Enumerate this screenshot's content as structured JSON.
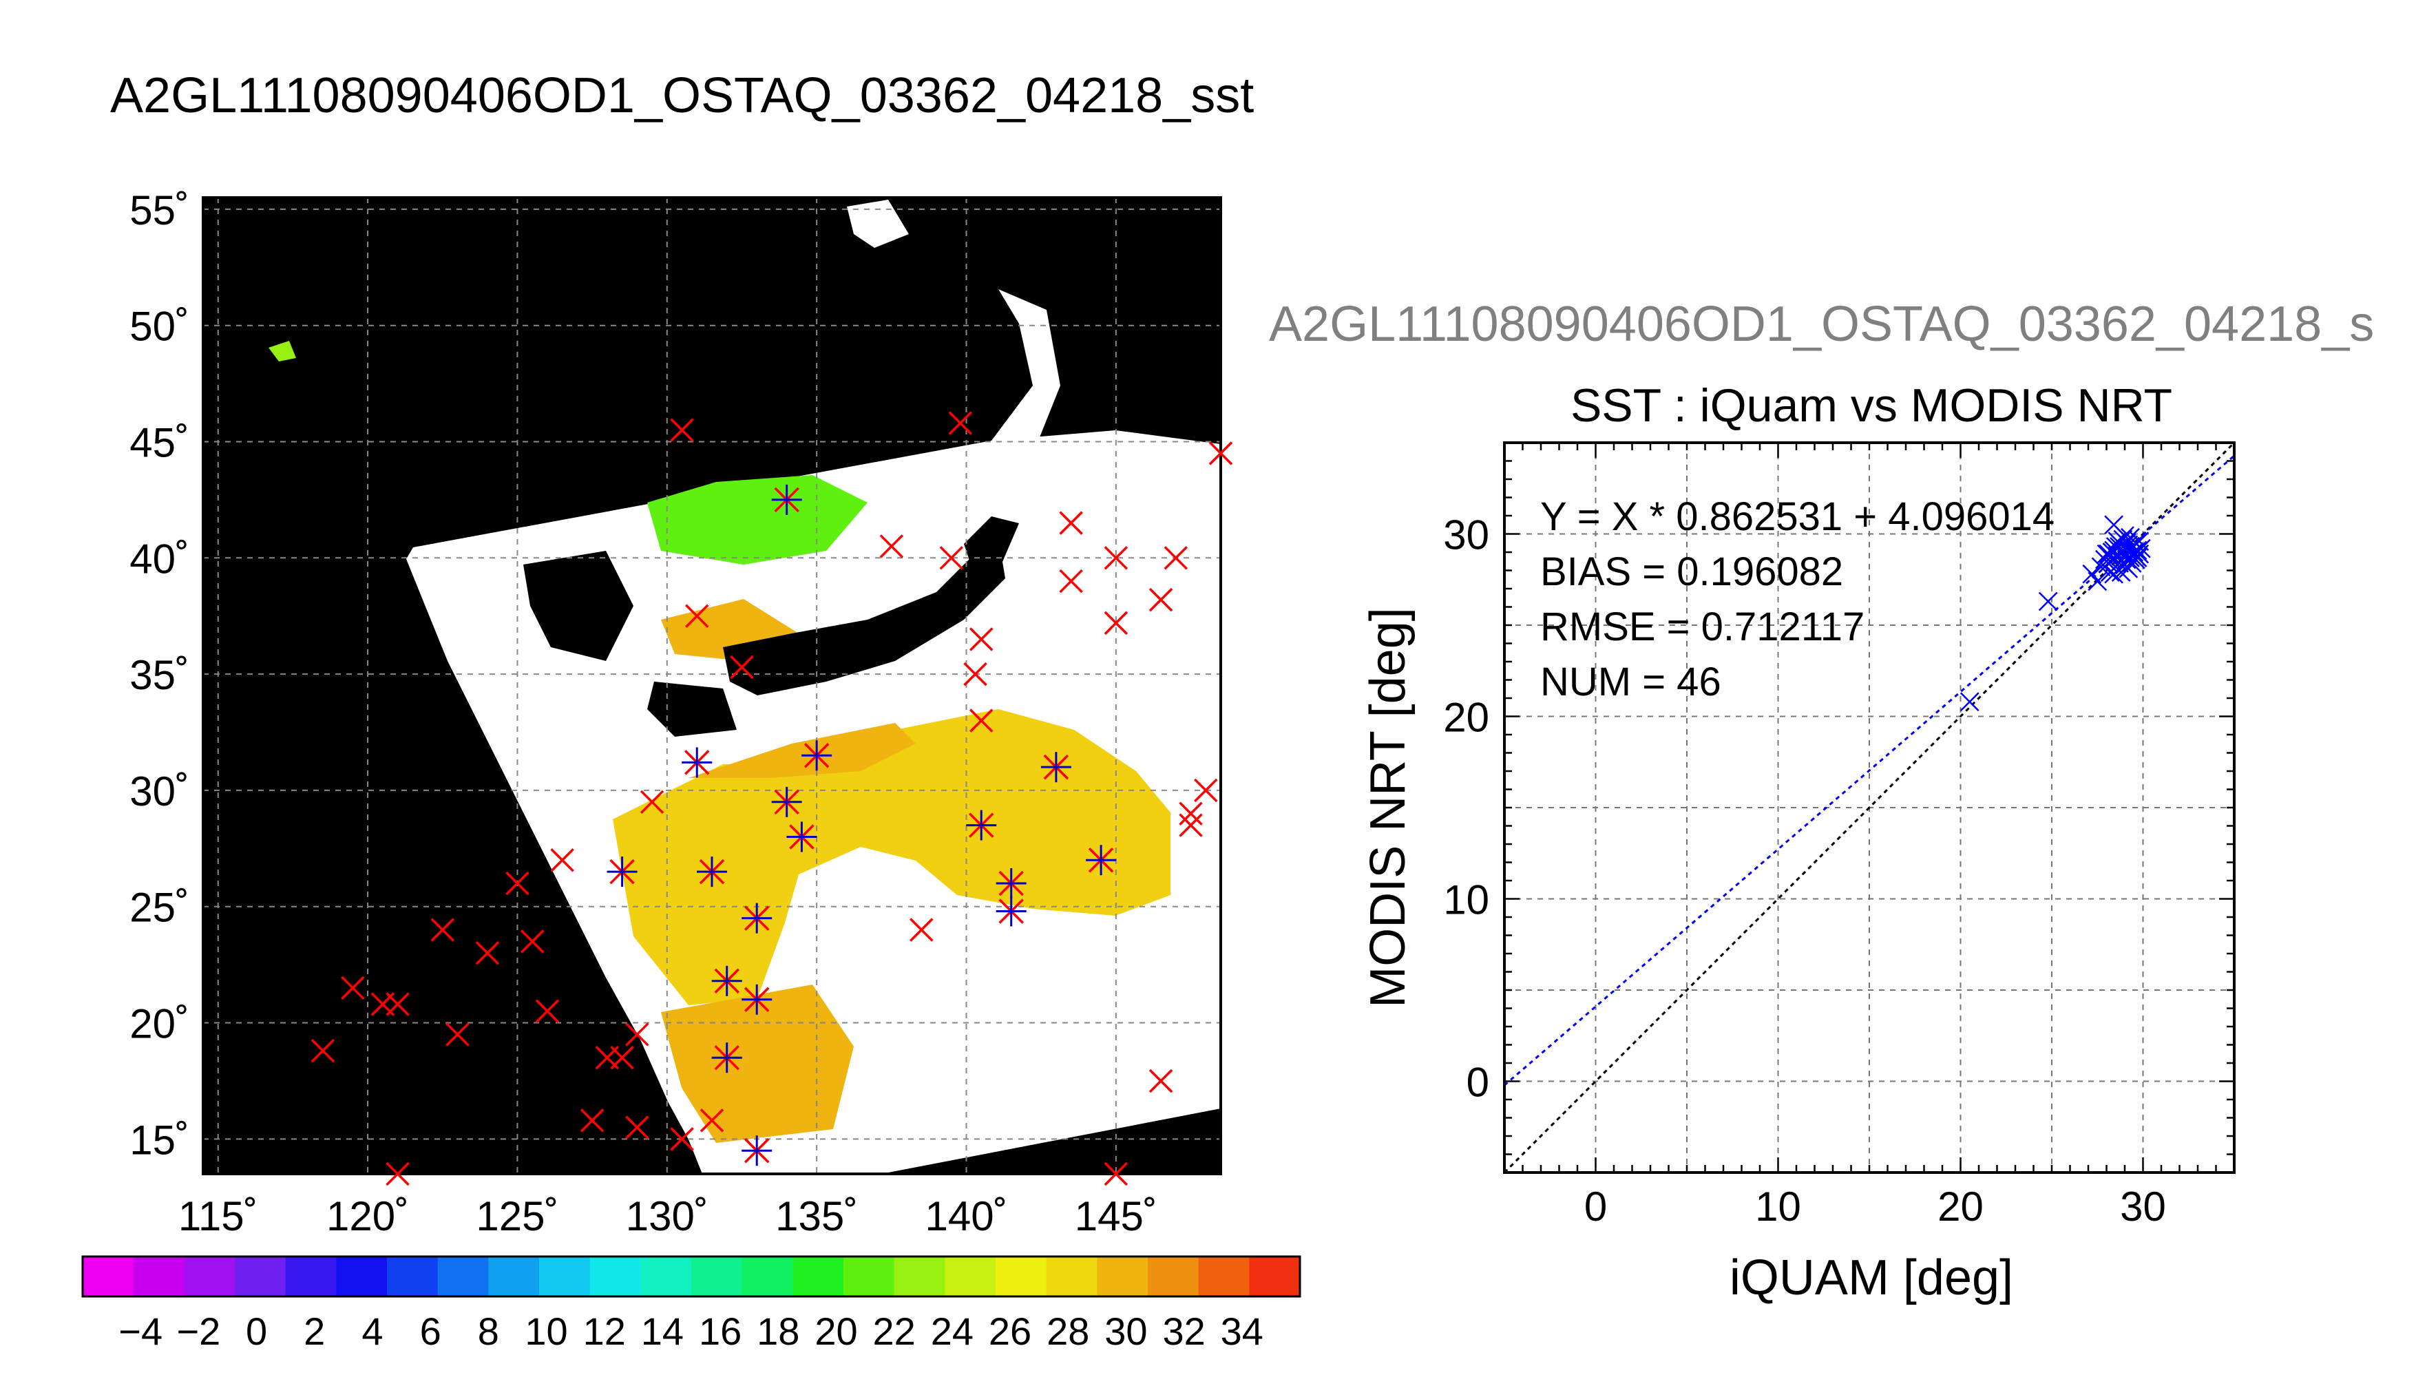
{
  "page_title": "A2GL11108090406OD1_OSTAQ_03362_04218_sst",
  "map": {
    "lat_labels": [
      "55˚",
      "50˚",
      "45˚",
      "40˚",
      "35˚",
      "30˚",
      "25˚",
      "20˚",
      "15˚"
    ],
    "lon_labels": [
      "115˚",
      "120˚",
      "125˚",
      "130˚",
      "135˚",
      "140˚",
      "145˚"
    ],
    "lat_range": [
      13.5,
      55.5
    ],
    "lon_range": [
      114.5,
      148.5
    ],
    "background_color": "#000000",
    "nodata_color": "#ffffff",
    "buoys_red": [
      [
        130.5,
        45.5
      ],
      [
        139.8,
        45.8
      ],
      [
        148.5,
        44.5
      ],
      [
        143.5,
        41.5
      ],
      [
        137.5,
        40.5
      ],
      [
        139.5,
        40.0
      ],
      [
        145.0,
        40.0
      ],
      [
        147.0,
        40.0
      ],
      [
        143.5,
        39.0
      ],
      [
        146.5,
        38.2
      ],
      [
        131.0,
        37.5
      ],
      [
        140.5,
        36.5
      ],
      [
        145.0,
        37.2
      ],
      [
        132.5,
        35.3
      ],
      [
        140.3,
        35.0
      ],
      [
        140.5,
        33.0
      ],
      [
        147.5,
        29.0
      ],
      [
        148.0,
        30.0
      ],
      [
        129.5,
        29.5
      ],
      [
        147.5,
        28.5
      ],
      [
        126.5,
        27.0
      ],
      [
        125.0,
        26.0
      ],
      [
        138.5,
        24.0
      ],
      [
        122.5,
        24.0
      ],
      [
        125.5,
        23.5
      ],
      [
        124.0,
        23.0
      ],
      [
        119.5,
        21.5
      ],
      [
        120.5,
        20.8
      ],
      [
        121.0,
        20.8
      ],
      [
        126.0,
        20.5
      ],
      [
        123.0,
        19.5
      ],
      [
        129.0,
        19.5
      ],
      [
        118.5,
        18.8
      ],
      [
        128.0,
        18.5
      ],
      [
        128.5,
        18.5
      ],
      [
        127.5,
        15.8
      ],
      [
        129.0,
        15.5
      ],
      [
        146.5,
        17.5
      ],
      [
        130.5,
        15.0
      ],
      [
        131.5,
        15.8
      ],
      [
        121.0,
        13.5
      ],
      [
        145.0,
        13.5
      ]
    ],
    "buoys_blue": [
      [
        134.0,
        42.5
      ],
      [
        131.0,
        31.2
      ],
      [
        135.0,
        31.5
      ],
      [
        134.0,
        29.5
      ],
      [
        134.5,
        28.0
      ],
      [
        140.5,
        28.5
      ],
      [
        143.0,
        31.0
      ],
      [
        128.5,
        26.5
      ],
      [
        131.5,
        26.5
      ],
      [
        141.5,
        26.0
      ],
      [
        144.5,
        27.0
      ],
      [
        133.0,
        24.5
      ],
      [
        141.5,
        24.8
      ],
      [
        132.0,
        21.8
      ],
      [
        133.0,
        21.0
      ],
      [
        132.0,
        18.5
      ],
      [
        133.0,
        14.5
      ]
    ],
    "colorbar": {
      "labels": [
        "−4",
        "−2",
        "0",
        "2",
        "4",
        "6",
        "8",
        "10",
        "12",
        "14",
        "16",
        "18",
        "20",
        "22",
        "24",
        "26",
        "28",
        "30",
        "32",
        "34"
      ],
      "colors": [
        "#f000f0",
        "#c800f0",
        "#a010f0",
        "#7020f0",
        "#3818f0",
        "#1010f0",
        "#1040f0",
        "#1070f0",
        "#10a0f0",
        "#10c8f0",
        "#10e8e8",
        "#10f0c0",
        "#10f090",
        "#10f060",
        "#20f020",
        "#60f010",
        "#98f010",
        "#c8f010",
        "#f0f010",
        "#f0d810",
        "#f0b410",
        "#f09010",
        "#f06010",
        "#f03010"
      ]
    }
  },
  "subtitle_truncated": "A2GL11108090406OD1_OSTAQ_03362_04218_s",
  "chart_data": {
    "type": "scatter",
    "title": "SST : iQuam vs MODIS NRT",
    "xlabel": "iQUAM [deg]",
    "ylabel": "MODIS NRT [deg]",
    "xlim": [
      -5,
      35
    ],
    "ylim": [
      -5,
      35
    ],
    "xticks": [
      "0",
      "10",
      "20",
      "30"
    ],
    "yticks": [
      "0",
      "10",
      "20",
      "30"
    ],
    "stats": [
      "Y = X * 0.862531 + 4.096014",
      "BIAS = 0.196082",
      "RMSE = 0.712117",
      "NUM = 46"
    ],
    "fit": {
      "slope": 0.862531,
      "intercept": 4.096014,
      "color": "#0000ff"
    },
    "identity_line_color": "#000000",
    "marker_color": "#0000ff",
    "grid": true,
    "points": [
      [
        20.5,
        20.8
      ],
      [
        24.8,
        26.3
      ],
      [
        27.2,
        27.8
      ],
      [
        27.5,
        27.4
      ],
      [
        27.7,
        28.2
      ],
      [
        28.0,
        28.9
      ],
      [
        28.1,
        28.4
      ],
      [
        28.2,
        27.9
      ],
      [
        28.3,
        28.6
      ],
      [
        28.4,
        30.5
      ],
      [
        28.4,
        29.1
      ],
      [
        28.5,
        28.2
      ],
      [
        28.6,
        28.8
      ],
      [
        28.7,
        29.3
      ],
      [
        28.8,
        27.9
      ],
      [
        28.8,
        28.5
      ],
      [
        28.9,
        29.0
      ],
      [
        29.0,
        28.3
      ],
      [
        29.0,
        28.8
      ],
      [
        29.1,
        29.5
      ],
      [
        29.1,
        28.6
      ],
      [
        29.2,
        28.1
      ],
      [
        29.2,
        29.1
      ],
      [
        29.3,
        28.7
      ],
      [
        29.4,
        29.3
      ],
      [
        29.4,
        28.4
      ],
      [
        29.5,
        28.9
      ],
      [
        29.6,
        29.5
      ],
      [
        29.6,
        28.6
      ],
      [
        29.7,
        29.1
      ],
      [
        29.8,
        28.9
      ],
      [
        29.8,
        29.6
      ],
      [
        29.9,
        29.2
      ],
      [
        28.6,
        29.6
      ],
      [
        28.9,
        29.7
      ],
      [
        29.3,
        29.8
      ],
      [
        28.1,
        28.9
      ],
      [
        28.5,
        29.3
      ],
      [
        29.0,
        29.9
      ],
      [
        29.5,
        29.0
      ],
      [
        28.3,
        29.0
      ],
      [
        27.9,
        28.6
      ],
      [
        28.7,
        28.4
      ],
      [
        29.2,
        29.4
      ],
      [
        29.7,
        28.7
      ],
      [
        28.4,
        27.8
      ]
    ]
  }
}
